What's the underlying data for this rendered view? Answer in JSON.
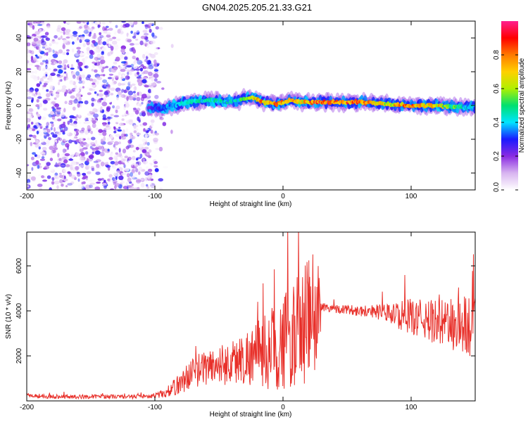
{
  "title": "GN04.2025.205.21.33.G21",
  "chart_data": [
    {
      "type": "heatmap",
      "xlabel": "Height of straight line (km)",
      "ylabel": "Frequency (Hz)",
      "xlim": [
        -200,
        150
      ],
      "ylim": [
        -50,
        50
      ],
      "xticks": [
        -200,
        -100,
        0,
        100
      ],
      "yticks": [
        -40,
        -20,
        0,
        20,
        40
      ],
      "colorbar": {
        "label": "Normalized spectral amplitude",
        "range": [
          0,
          1
        ],
        "ticks": [
          "0.0",
          "0.2",
          "0.4",
          "0.6",
          "0.8"
        ],
        "colors": [
          "#ffffff",
          "#d8b4f0",
          "#8a2be2",
          "#1a1aff",
          "#00e5ff",
          "#00e070",
          "#b0f000",
          "#ffd000",
          "#ff7a00",
          "#ff0000",
          "#ff1f8f"
        ]
      },
      "noise_region": {
        "x_range": [
          -200,
          -98
        ],
        "description_level": 0.15
      },
      "ridge": {
        "x": [
          -105,
          -95,
          -85,
          -75,
          -65,
          -55,
          -45,
          -35,
          -25,
          -15,
          -5,
          5,
          15,
          25,
          40,
          60,
          80,
          100,
          120,
          140,
          150
        ],
        "frequency_hz": [
          -1,
          -2,
          0,
          2,
          3,
          3,
          2,
          3,
          5,
          2,
          1,
          3,
          2,
          2,
          2,
          2,
          1,
          0,
          0,
          -1,
          -1
        ],
        "amplitude": [
          0.25,
          0.35,
          0.4,
          0.45,
          0.45,
          0.45,
          0.45,
          0.45,
          0.75,
          0.8,
          0.8,
          0.75,
          0.7,
          0.9,
          0.9,
          0.85,
          0.7,
          0.85,
          0.75,
          0.45,
          0.4
        ]
      },
      "grid": false
    },
    {
      "type": "line",
      "xlabel": "Height of straight line (km)",
      "ylabel": "SNR (10 * v/v)",
      "xlim": [
        -200,
        150
      ],
      "ylim": [
        0,
        7500
      ],
      "xticks": [
        -200,
        -100,
        0,
        100
      ],
      "yticks": [
        2000,
        4000,
        6000
      ],
      "color": "#e8302a",
      "series": [
        {
          "x": [
            -200,
            -180,
            -160,
            -140,
            -120,
            -100,
            -90,
            -80,
            -70,
            -60,
            -50,
            -40,
            -30,
            -20,
            -10,
            0,
            10,
            20,
            25,
            28,
            30,
            40,
            50,
            60,
            70,
            80,
            90,
            100,
            110,
            120,
            130,
            140,
            150
          ],
          "mean": [
            250,
            200,
            180,
            200,
            180,
            220,
            400,
            800,
            1300,
            1500,
            1600,
            1700,
            1900,
            2100,
            2300,
            2600,
            3000,
            3500,
            3600,
            3900,
            4200,
            4100,
            4050,
            4000,
            4000,
            3900,
            3800,
            3750,
            3600,
            3500,
            3400,
            3350,
            3300
          ],
          "spread": [
            100,
            100,
            90,
            90,
            90,
            100,
            250,
            500,
            700,
            800,
            900,
            1000,
            1200,
            1500,
            1800,
            2200,
            2400,
            3000,
            3200,
            2500,
            200,
            200,
            200,
            250,
            300,
            400,
            600,
            800,
            900,
            1000,
            1200,
            1400,
            1500
          ]
        }
      ],
      "grid": false
    }
  ]
}
